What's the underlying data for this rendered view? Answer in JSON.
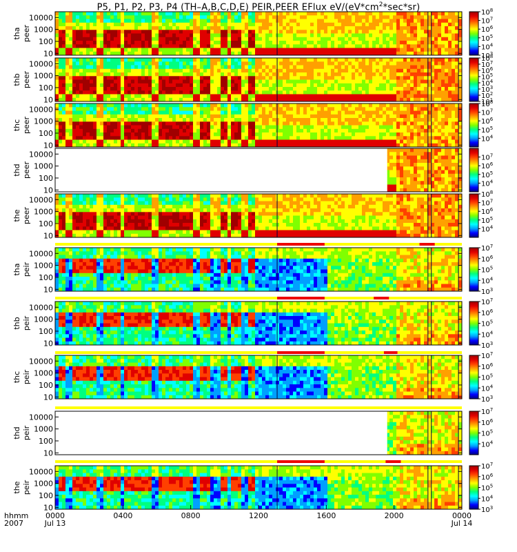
{
  "title": {
    "prefix": "P5, P1, P2, P3, P4 (TH–A,B,C,D,E) PEIR,PEER EFlux eV/(eV*cm",
    "sup": "2",
    "suffix": "*sec*sr)"
  },
  "colors": {
    "accent_bar": "#ffff00",
    "interval_bar": "#ee0000",
    "colormap": [
      "#000080",
      "#0000ff",
      "#00a0ff",
      "#00ffff",
      "#00ff80",
      "#80ff00",
      "#ffff00",
      "#ffa000",
      "#ff4000",
      "#e00000",
      "#a00000"
    ]
  },
  "chart_data": {
    "type": "heatmap",
    "xaxis": {
      "range_hours": [
        0,
        24
      ],
      "ticks": [
        {
          "hour": 0,
          "label": "0000"
        },
        {
          "hour": 4,
          "label": "0400"
        },
        {
          "hour": 8,
          "label": "0800"
        },
        {
          "hour": 12,
          "label": "1200"
        },
        {
          "hour": 16,
          "label": "1600"
        },
        {
          "hour": 20,
          "label": "2000"
        },
        {
          "hour": 24,
          "label": "0000"
        }
      ],
      "left_label_top": "hhmm",
      "left_label_bottom": "2007",
      "date_start": "Jul 13",
      "date_end": "Jul 14"
    },
    "yaxis": {
      "scale": "log",
      "range_eV": [
        7,
        30000
      ],
      "tick_labels": [
        "10000",
        "1000",
        "100",
        "10"
      ]
    },
    "panels": [
      {
        "probe": "tha",
        "instrument": "peer",
        "yticks": [
          "10000",
          "1000",
          "100",
          "10"
        ],
        "cbar": {
          "exp_min": 3,
          "exp_max": 8,
          "labels": [
            "8",
            "7",
            "6",
            "5",
            "4",
            "3"
          ]
        },
        "data_start_hour": 0
      },
      {
        "probe": "thb",
        "instrument": "peer",
        "yticks": [
          "10000",
          "1000",
          "100",
          "10"
        ],
        "cbar": {
          "exp_min": 1,
          "exp_max": 8,
          "labels": [
            "8",
            "7",
            "6",
            "5",
            "4",
            "3",
            "2",
            "1"
          ]
        },
        "data_start_hour": 0
      },
      {
        "probe": "thc",
        "instrument": "peer",
        "yticks": [
          "10000",
          "1000",
          "100",
          "10"
        ],
        "cbar": {
          "exp_min": 3,
          "exp_max": 8,
          "labels": [
            "8",
            "7",
            "6",
            "5",
            "4"
          ]
        },
        "data_start_hour": 0
      },
      {
        "probe": "thd",
        "instrument": "peer",
        "yticks": [
          "10000",
          "1000",
          "100",
          "10"
        ],
        "cbar": {
          "exp_min": 3,
          "exp_max": 8,
          "labels": [
            "7",
            "6",
            "5",
            "4"
          ]
        },
        "data_start_hour": 19.6
      },
      {
        "probe": "the",
        "instrument": "peer",
        "yticks": [
          "10000",
          "1000",
          "100",
          "10"
        ],
        "cbar": {
          "exp_min": 3,
          "exp_max": 8,
          "labels": [
            "8",
            "7",
            "6",
            "5",
            "4"
          ]
        },
        "data_start_hour": 0
      },
      {
        "probe": "tha",
        "instrument": "peir",
        "yticks": [
          "10000",
          "1000",
          "100",
          "10"
        ],
        "cbar": {
          "exp_min": 3,
          "exp_max": 7,
          "labels": [
            "7",
            "6",
            "5",
            "4",
            "3"
          ]
        },
        "data_start_hour": 0
      },
      {
        "probe": "thb",
        "instrument": "peir",
        "yticks": [
          "10000",
          "1000",
          "100",
          "10"
        ],
        "cbar": {
          "exp_min": 3,
          "exp_max": 7,
          "labels": [
            "7",
            "6",
            "5",
            "4",
            "3"
          ]
        },
        "data_start_hour": 0
      },
      {
        "probe": "thc",
        "instrument": "peir",
        "yticks": [
          "10000",
          "1000",
          "100",
          "10"
        ],
        "cbar": {
          "exp_min": 3,
          "exp_max": 7,
          "labels": [
            "7",
            "6",
            "5",
            "4",
            "3"
          ]
        },
        "data_start_hour": 0
      },
      {
        "probe": "thd",
        "instrument": "peir",
        "yticks": [
          "10000",
          "1000",
          "100",
          "10"
        ],
        "cbar": {
          "exp_min": 3,
          "exp_max": 7,
          "labels": [
            "7",
            "6",
            "5",
            "4"
          ]
        },
        "data_start_hour": 19.6
      },
      {
        "probe": "the",
        "instrument": "peir",
        "yticks": [
          "10000",
          "1000",
          "100",
          "10"
        ],
        "cbar": {
          "exp_min": 3,
          "exp_max": 7,
          "labels": [
            "7",
            "6",
            "5",
            "4",
            "3"
          ]
        },
        "data_start_hour": 0
      }
    ],
    "mode_bars": [
      {
        "after_panel": 5,
        "intervals_hours": [
          [
            13.1,
            15.9
          ],
          [
            21.5,
            22.4
          ]
        ]
      },
      {
        "after_panel": 6,
        "intervals_hours": [
          [
            13.1,
            15.9
          ],
          [
            18.8,
            19.7
          ]
        ]
      },
      {
        "after_panel": 7,
        "intervals_hours": [
          [
            13.1,
            15.9
          ],
          [
            19.4,
            20.2
          ]
        ]
      },
      {
        "after_panel": 8,
        "intervals_hours": []
      },
      {
        "after_panel": 9,
        "intervals_hours": [
          [
            13.1,
            15.9
          ],
          [
            19.5,
            20.4
          ]
        ]
      }
    ]
  }
}
